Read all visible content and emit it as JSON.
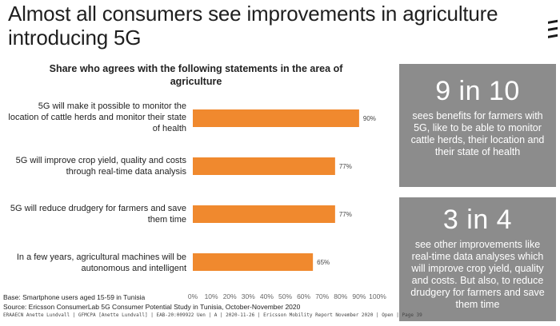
{
  "title": "Almost all consumers see improvements in agriculture introducing 5G",
  "chart_data": {
    "type": "bar",
    "orientation": "horizontal",
    "title": "Share who agrees with the following statements in the area of agriculture",
    "categories": [
      "5G will make it possible to monitor the location of cattle herds and monitor their state of health",
      "5G will improve crop yield, quality and costs through real-time data analysis",
      "5G will reduce drudgery for farmers and save them time",
      "In a few years, agricultural machines will be autonomous and intelligent"
    ],
    "values": [
      90,
      77,
      77,
      65
    ],
    "value_labels": [
      "90%",
      "77%",
      "77%",
      "65%"
    ],
    "xlim": [
      0,
      100
    ],
    "ticks": [
      "0%",
      "10%",
      "20%",
      "30%",
      "40%",
      "50%",
      "60%",
      "70%",
      "80%",
      "90%",
      "100%"
    ],
    "bar_color": "#f0892e",
    "grid": false,
    "xlabel": "",
    "ylabel": ""
  },
  "panels": [
    {
      "big": "9 in 10",
      "text": "sees benefits for farmers with 5G, like to be able to monitor cattle herds, their location and their state of health"
    },
    {
      "big": "3 in 4",
      "text": "see other improvements like real-time data analyses which will improve crop yield, quality and costs. But also, to reduce drudgery for farmers and save them time"
    }
  ],
  "panel_color": "#8c8c8c",
  "footnotes": {
    "base": "Base: Smartphone users aged 15-59 in Tunisia",
    "source": "Source: Ericsson ConsumerLab 5G Consumer Potential Study in Tunisia, October-November 2020",
    "fine": "ERAAECN Anette Lundvall | GFMCPA [Anette Lundvall] | EAB-20:009922 Uen | A | 2020-11-26 | Ericsson Mobility Report November 2020 | Open | Page 39"
  }
}
